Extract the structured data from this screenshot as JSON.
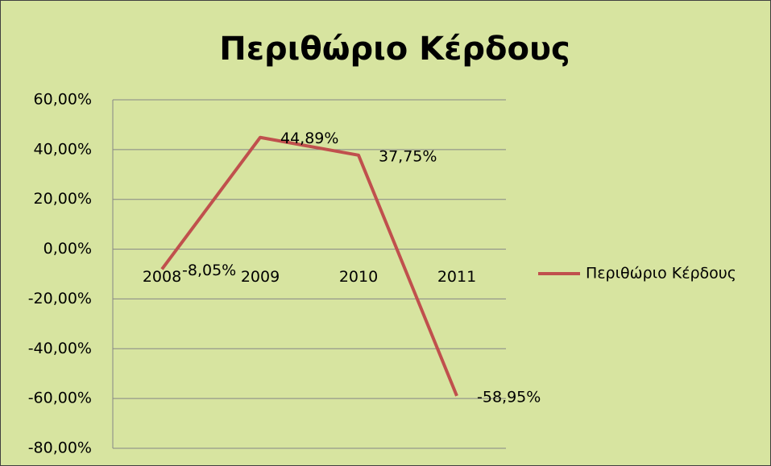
{
  "chart_data": {
    "type": "line",
    "title": "Περιθώριο Κέρδους",
    "categories": [
      "2008",
      "2009",
      "2010",
      "2011"
    ],
    "series": [
      {
        "name": "Περιθώριο Κέρδους",
        "color": "#c0504d",
        "values": [
          -8.05,
          44.89,
          37.75,
          -58.95
        ],
        "value_labels": [
          "-8,05%",
          "44,89%",
          "37,75%",
          "-58,95%"
        ]
      }
    ],
    "ylim": [
      -80,
      60
    ],
    "yticks": [
      {
        "value": -80,
        "label": "-80,00%"
      },
      {
        "value": -60,
        "label": "-60,00%"
      },
      {
        "value": -40,
        "label": "-40,00%"
      },
      {
        "value": -20,
        "label": "-20,00%"
      },
      {
        "value": 0,
        "label": "0,00%"
      },
      {
        "value": 20,
        "label": "20,00%"
      },
      {
        "value": 40,
        "label": "40,00%"
      },
      {
        "value": 60,
        "label": "60,00%"
      }
    ],
    "grid": true,
    "legend": "right"
  }
}
